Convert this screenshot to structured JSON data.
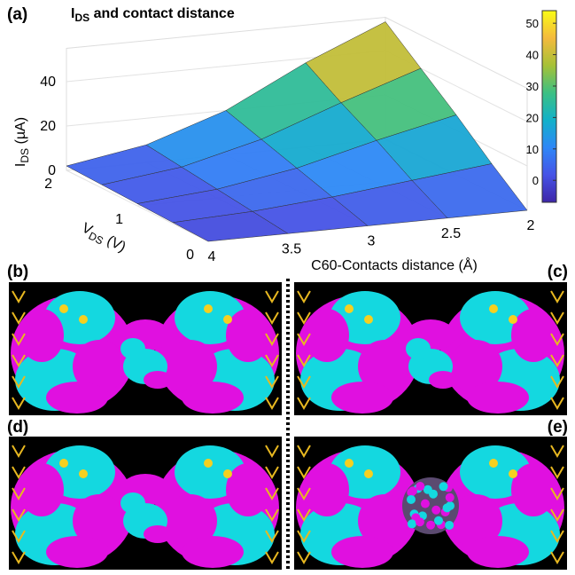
{
  "panel_label": "(a)",
  "chart_data": {
    "type": "surface3d",
    "title_parts": [
      "I",
      "DS",
      " and contact distance"
    ],
    "zlabel_parts": [
      "I",
      "DS",
      " (µA)"
    ],
    "ylabel_parts": [
      "V",
      "DS",
      " (V)"
    ],
    "xlabel": "C60-Contacts distance (Å)",
    "x": [
      4,
      3.5,
      3,
      2.5,
      2
    ],
    "y": [
      0,
      0.5,
      1,
      1.5,
      2
    ],
    "z": [
      [
        0,
        0,
        0,
        0,
        0
      ],
      [
        0.5,
        2,
        5,
        9,
        13
      ],
      [
        1,
        4,
        10,
        19,
        27
      ],
      [
        1.5,
        6,
        15,
        28,
        40
      ],
      [
        2,
        8,
        20,
        38,
        53
      ]
    ],
    "xlim": [
      2,
      4
    ],
    "xticks": [
      4,
      3.5,
      3,
      2.5,
      2
    ],
    "ylim": [
      0,
      2
    ],
    "yticks": [
      0,
      1,
      2
    ],
    "zlim": [
      -7,
      55
    ],
    "zticks": [
      0,
      20,
      40
    ],
    "clim": [
      -7,
      54
    ],
    "cticks": [
      0,
      10,
      20,
      30,
      40,
      50
    ],
    "colormap": [
      "#3e26a8",
      "#4653e6",
      "#2e87f7",
      "#12b1c9",
      "#3cc083",
      "#a6c137",
      "#f4ba3d",
      "#f9fb15"
    ]
  },
  "panels": [
    {
      "label": "(b)"
    },
    {
      "label": "(c)"
    },
    {
      "label": "(d)"
    },
    {
      "label": "(e)"
    }
  ]
}
